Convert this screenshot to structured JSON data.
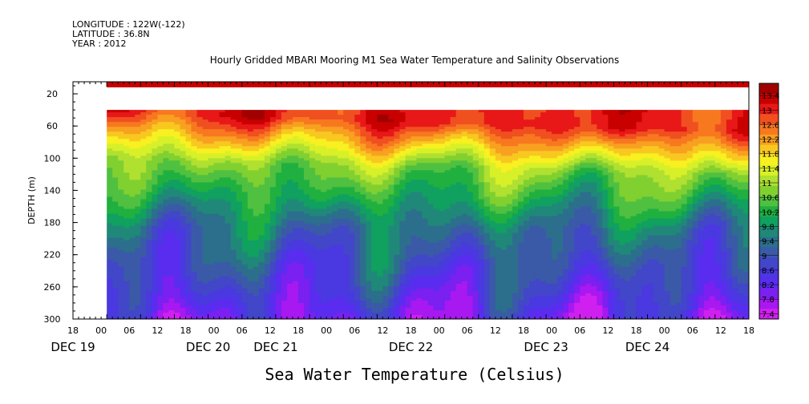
{
  "header": {
    "longitude": "LONGITUDE : 122W(-122)",
    "latitude": "LATITUDE : 36.8N",
    "year": "YEAR : 2012"
  },
  "chart_data": {
    "type": "heatmap",
    "title": "Hourly Gridded MBARI Mooring M1 Sea Water Temperature and Salinity Observations",
    "xlabel": "Sea Water Temperature (Celsius)",
    "ylabel": "DEPTH (m)",
    "y_ticks": [
      "20",
      "60",
      "100",
      "140",
      "180",
      "220",
      "260",
      "300"
    ],
    "y_tick_values": [
      20,
      60,
      100,
      140,
      180,
      220,
      260,
      300
    ],
    "ylim": [
      300,
      5
    ],
    "x_hour_ticks": [
      "18",
      "00",
      "06",
      "12",
      "18",
      "00",
      "06",
      "12",
      "18",
      "00",
      "06",
      "12",
      "18",
      "00",
      "06",
      "12",
      "18",
      "00",
      "06",
      "12",
      "18",
      "00",
      "06",
      "12",
      "18"
    ],
    "x_start": "DEC 19 18:00",
    "x_end": "DEC 24 18:00",
    "x_day_labels": [
      "DEC 19",
      "DEC 20",
      "DEC 21",
      "DEC 22",
      "DEC 23",
      "DEC 24"
    ],
    "day_label_hours": [
      0,
      24,
      36,
      60,
      84,
      102
    ],
    "colorbar": {
      "ticks": [
        "13.4",
        "13",
        "12.6",
        "12.2",
        "11.8",
        "11.4",
        "11",
        "10.6",
        "10.2",
        "9.8",
        "9.4",
        "9",
        "8.6",
        "8.2",
        "7.8",
        "7.4"
      ],
      "tick_values": [
        13.4,
        13,
        12.6,
        12.2,
        11.8,
        11.4,
        11,
        10.6,
        10.2,
        9.8,
        9.4,
        9,
        8.6,
        8.2,
        7.8,
        7.4
      ],
      "colors": [
        "#a00000",
        "#c80000",
        "#e81818",
        "#f05020",
        "#f87820",
        "#f8a020",
        "#f8c820",
        "#f8f020",
        "#d8f028",
        "#b0e030",
        "#80d030",
        "#50c040",
        "#20b040",
        "#10a060",
        "#208878",
        "#2c6f8c",
        "#3a5aa8",
        "#4246c8",
        "#4a38e0",
        "#5a2cf0",
        "#7a20f0",
        "#a818f0",
        "#d020f0"
      ]
    },
    "data_start_hour": 6,
    "surface_band_depth": [
      5,
      12
    ],
    "gap_depth": [
      12,
      40
    ],
    "temperature_profile_mean": [
      {
        "depth": 40,
        "temp": 12.7
      },
      {
        "depth": 60,
        "temp": 12.0
      },
      {
        "depth": 80,
        "temp": 11.3
      },
      {
        "depth": 100,
        "temp": 10.6
      },
      {
        "depth": 140,
        "temp": 9.9
      },
      {
        "depth": 180,
        "temp": 9.2
      },
      {
        "depth": 220,
        "temp": 8.8
      },
      {
        "depth": 260,
        "temp": 8.4
      },
      {
        "depth": 300,
        "temp": 7.9
      }
    ]
  }
}
